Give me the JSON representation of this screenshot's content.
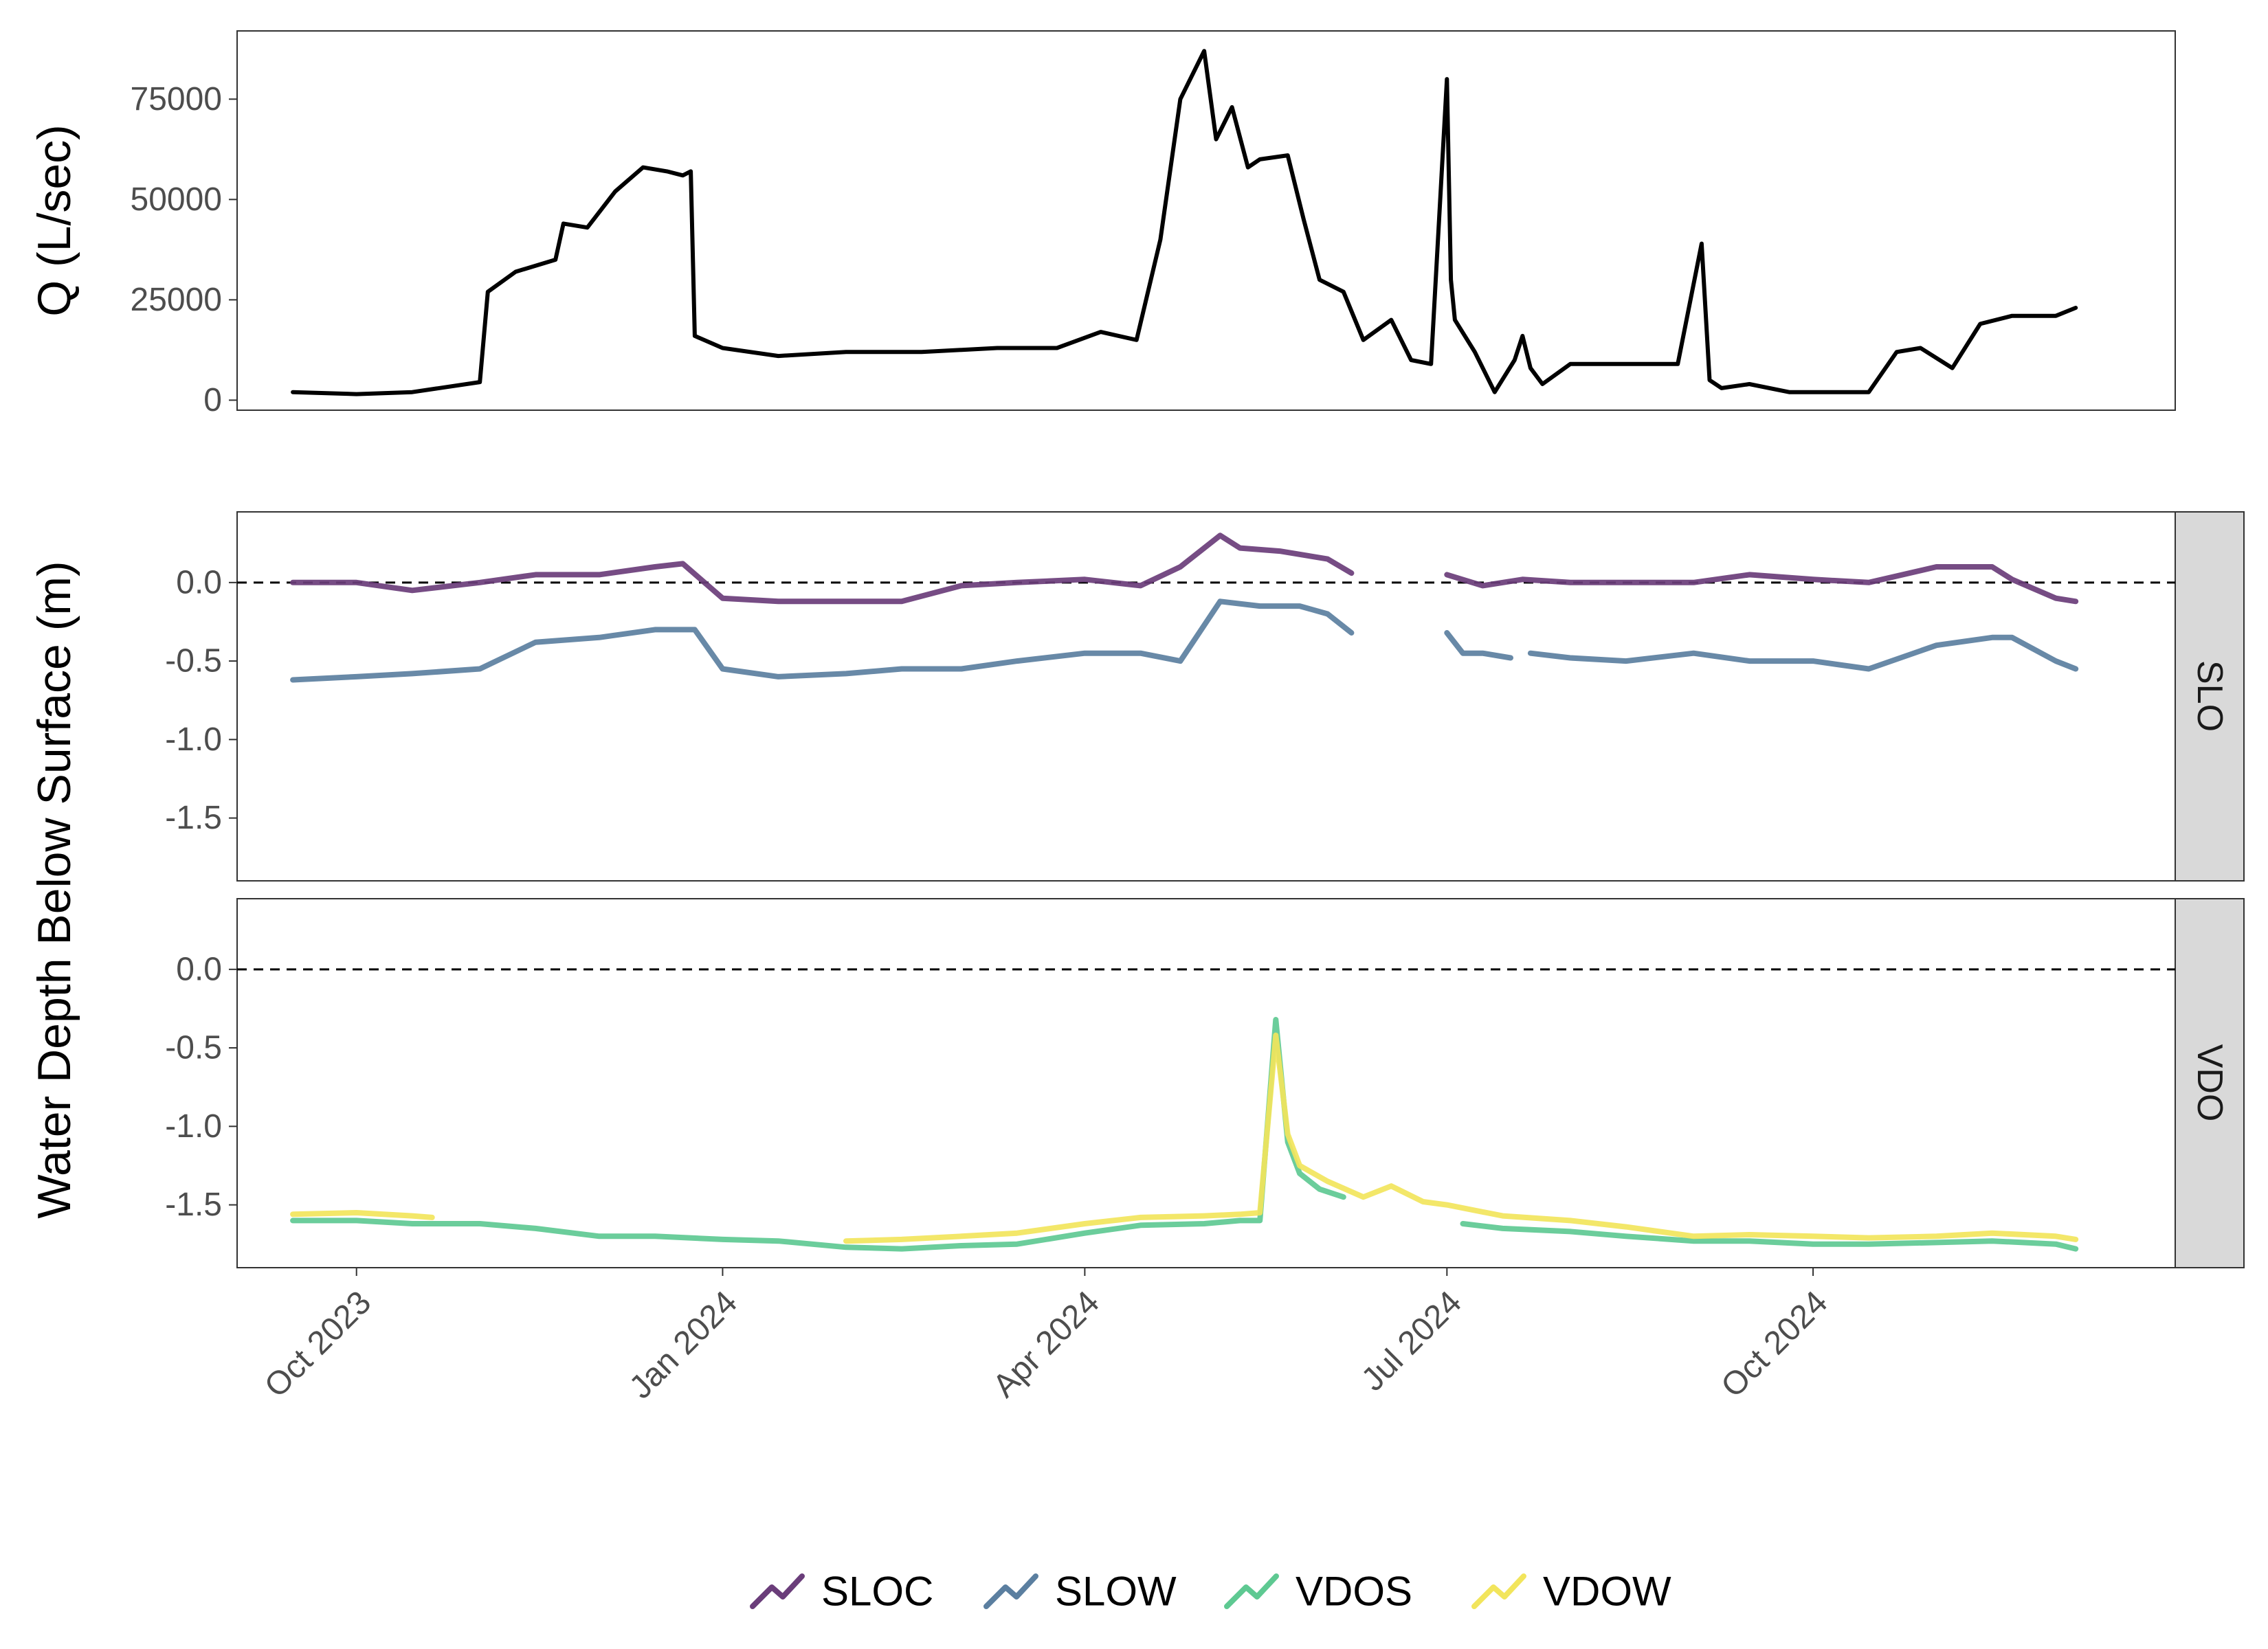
{
  "chart_data": [
    {
      "panel": "discharge",
      "type": "line",
      "ylabel": "Q (L/sec)",
      "ylim": [
        -2500,
        92000
      ],
      "yticks": [
        0,
        25000,
        50000,
        75000
      ],
      "ytick_labels": [
        "0",
        "25000",
        "50000",
        "75000"
      ],
      "xlim": [
        "2023-09-01",
        "2024-12-31"
      ],
      "series": [
        {
          "color": "#000000",
          "x": [
            "2023-09-15",
            "2023-10-01",
            "2023-10-15",
            "2023-11-01",
            "2023-11-03",
            "2023-11-10",
            "2023-11-20",
            "2023-11-22",
            "2023-11-28",
            "2023-12-05",
            "2023-12-12",
            "2023-12-18",
            "2023-12-22",
            "2023-12-24",
            "2023-12-25",
            "2024-01-01",
            "2024-01-15",
            "2024-02-01",
            "2024-02-20",
            "2024-03-10",
            "2024-03-25",
            "2024-04-05",
            "2024-04-14",
            "2024-04-20",
            "2024-04-25",
            "2024-05-01",
            "2024-05-04",
            "2024-05-08",
            "2024-05-12",
            "2024-05-15",
            "2024-05-22",
            "2024-05-26",
            "2024-05-30",
            "2024-06-05",
            "2024-06-10",
            "2024-06-17",
            "2024-06-22",
            "2024-06-27",
            "2024-07-01",
            "2024-07-02",
            "2024-07-03",
            "2024-07-08",
            "2024-07-13",
            "2024-07-18",
            "2024-07-20",
            "2024-07-22",
            "2024-07-25",
            "2024-08-01",
            "2024-08-15",
            "2024-08-28",
            "2024-09-03",
            "2024-09-05",
            "2024-09-08",
            "2024-09-15",
            "2024-09-25",
            "2024-10-15",
            "2024-10-22",
            "2024-10-28",
            "2024-11-05",
            "2024-11-12",
            "2024-11-20",
            "2024-11-25",
            "2024-12-01",
            "2024-12-06"
          ],
          "values": [
            2000,
            1500,
            2000,
            4500,
            27000,
            32000,
            35000,
            44000,
            43000,
            52000,
            58000,
            57000,
            56000,
            57000,
            16000,
            13000,
            11000,
            12000,
            12000,
            13000,
            13000,
            17000,
            15000,
            40000,
            75000,
            87000,
            65000,
            73000,
            58000,
            60000,
            61000,
            45000,
            30000,
            27000,
            15000,
            20000,
            10000,
            9000,
            80000,
            30000,
            20000,
            12000,
            2000,
            10000,
            16000,
            8000,
            4000,
            9000,
            9000,
            9000,
            39000,
            5000,
            3000,
            4000,
            2000,
            2000,
            12000,
            13000,
            8000,
            19000,
            21000,
            21000,
            21000,
            23000
          ]
        }
      ]
    },
    {
      "panel": "SLO",
      "type": "line",
      "facet_label": "SLO",
      "ylabel": "Water Depth Below Surface (m)",
      "ylim": [
        -1.9,
        0.45
      ],
      "yticks": [
        0.0,
        -0.5,
        -1.0,
        -1.5
      ],
      "ytick_labels": [
        "0.0",
        "-0.5",
        "-1.0",
        "-1.5"
      ],
      "reference_line": 0.0,
      "series": [
        {
          "name": "SLOC",
          "color": "#6a3d7a",
          "segments": [
            {
              "x": [
                "2023-09-15",
                "2023-10-01",
                "2023-10-15",
                "2023-11-01",
                "2023-11-15",
                "2023-12-01",
                "2023-12-15",
                "2023-12-22",
                "2024-01-01",
                "2024-01-15",
                "2024-02-01",
                "2024-02-15",
                "2024-03-01",
                "2024-03-15",
                "2024-04-01",
                "2024-04-15",
                "2024-04-25",
                "2024-05-05",
                "2024-05-10",
                "2024-05-20",
                "2024-06-01",
                "2024-06-07"
              ],
              "values": [
                0.0,
                0.0,
                -0.05,
                0.0,
                0.05,
                0.05,
                0.1,
                0.12,
                -0.1,
                -0.12,
                -0.12,
                -0.12,
                -0.02,
                0.0,
                0.02,
                -0.02,
                0.1,
                0.3,
                0.22,
                0.2,
                0.15,
                0.06
              ]
            },
            {
              "x": [
                "2024-07-01",
                "2024-07-10",
                "2024-07-20",
                "2024-08-01",
                "2024-08-15",
                "2024-09-01",
                "2024-09-15",
                "2024-10-01",
                "2024-10-15",
                "2024-11-01",
                "2024-11-15",
                "2024-11-20",
                "2024-12-01",
                "2024-12-06"
              ],
              "values": [
                0.05,
                -0.02,
                0.02,
                0.0,
                0.0,
                0.0,
                0.05,
                0.02,
                0.0,
                0.1,
                0.1,
                0.02,
                -0.1,
                -0.12
              ]
            }
          ]
        },
        {
          "name": "SLOW",
          "color": "#5b7fa0",
          "segments": [
            {
              "x": [
                "2023-09-15",
                "2023-10-01",
                "2023-10-15",
                "2023-11-01",
                "2023-11-15",
                "2023-12-01",
                "2023-12-15",
                "2023-12-25",
                "2024-01-01",
                "2024-01-15",
                "2024-02-01",
                "2024-02-15",
                "2024-03-01",
                "2024-03-15",
                "2024-04-01",
                "2024-04-15",
                "2024-04-25",
                "2024-05-05",
                "2024-05-15",
                "2024-05-25",
                "2024-06-01",
                "2024-06-07"
              ],
              "values": [
                -0.62,
                -0.6,
                -0.58,
                -0.55,
                -0.38,
                -0.35,
                -0.3,
                -0.3,
                -0.55,
                -0.6,
                -0.58,
                -0.55,
                -0.55,
                -0.5,
                -0.45,
                -0.45,
                -0.5,
                -0.12,
                -0.15,
                -0.15,
                -0.2,
                -0.32
              ]
            },
            {
              "x": [
                "2024-07-01",
                "2024-07-05",
                "2024-07-10",
                "2024-07-17"
              ],
              "values": [
                -0.32,
                -0.45,
                -0.45,
                -0.48
              ]
            },
            {
              "x": [
                "2024-07-22",
                "2024-08-01",
                "2024-08-15",
                "2024-09-01",
                "2024-09-15",
                "2024-10-01",
                "2024-10-15",
                "2024-11-01",
                "2024-11-15",
                "2024-11-20",
                "2024-12-01",
                "2024-12-06"
              ],
              "values": [
                -0.45,
                -0.48,
                -0.5,
                -0.45,
                -0.5,
                -0.5,
                -0.55,
                -0.4,
                -0.35,
                -0.35,
                -0.5,
                -0.55
              ]
            }
          ]
        }
      ]
    },
    {
      "panel": "VDO",
      "type": "line",
      "facet_label": "VDO",
      "ylim": [
        -1.9,
        0.45
      ],
      "yticks": [
        0.0,
        -0.5,
        -1.0,
        -1.5
      ],
      "ytick_labels": [
        "0.0",
        "-0.5",
        "-1.0",
        "-1.5"
      ],
      "reference_line": 0.0,
      "series": [
        {
          "name": "VDOS",
          "color": "#5ec992",
          "segments": [
            {
              "x": [
                "2023-09-15",
                "2023-10-01",
                "2023-10-15",
                "2023-11-01",
                "2023-11-15",
                "2023-12-01",
                "2023-12-15",
                "2024-01-01",
                "2024-01-15",
                "2024-02-01",
                "2024-02-15",
                "2024-03-01",
                "2024-03-15",
                "2024-04-01",
                "2024-04-15",
                "2024-05-01",
                "2024-05-10",
                "2024-05-15",
                "2024-05-19",
                "2024-05-22",
                "2024-05-25",
                "2024-05-30",
                "2024-06-05"
              ],
              "values": [
                -1.6,
                -1.6,
                -1.62,
                -1.62,
                -1.65,
                -1.7,
                -1.7,
                -1.72,
                -1.73,
                -1.77,
                -1.78,
                -1.76,
                -1.75,
                -1.68,
                -1.63,
                -1.62,
                -1.6,
                -1.6,
                -0.32,
                -1.1,
                -1.3,
                -1.4,
                -1.45
              ]
            },
            {
              "x": [
                "2024-07-05",
                "2024-07-15",
                "2024-08-01",
                "2024-08-15",
                "2024-09-01",
                "2024-09-15",
                "2024-10-01",
                "2024-10-15",
                "2024-11-01",
                "2024-11-15",
                "2024-12-01",
                "2024-12-06"
              ],
              "values": [
                -1.62,
                -1.65,
                -1.67,
                -1.7,
                -1.73,
                -1.73,
                -1.75,
                -1.75,
                -1.74,
                -1.73,
                -1.75,
                -1.78
              ]
            }
          ]
        },
        {
          "name": "VDOW",
          "color": "#f2e55c",
          "segments": [
            {
              "x": [
                "2023-09-15",
                "2023-10-01",
                "2023-10-15",
                "2023-10-20"
              ],
              "values": [
                -1.56,
                -1.55,
                -1.57,
                -1.58
              ]
            },
            {
              "x": [
                "2024-02-01",
                "2024-02-15",
                "2024-03-01",
                "2024-03-15",
                "2024-04-01",
                "2024-04-15",
                "2024-05-01",
                "2024-05-10",
                "2024-05-15",
                "2024-05-19",
                "2024-05-22",
                "2024-05-25",
                "2024-06-01",
                "2024-06-10",
                "2024-06-17",
                "2024-06-25",
                "2024-07-01",
                "2024-07-15",
                "2024-08-01",
                "2024-08-15",
                "2024-09-01",
                "2024-09-15",
                "2024-10-01",
                "2024-10-15",
                "2024-11-01",
                "2024-11-15",
                "2024-12-01",
                "2024-12-06"
              ],
              "values": [
                -1.73,
                -1.72,
                -1.7,
                -1.68,
                -1.62,
                -1.58,
                -1.57,
                -1.56,
                -1.55,
                -0.42,
                -1.05,
                -1.25,
                -1.35,
                -1.45,
                -1.38,
                -1.48,
                -1.5,
                -1.57,
                -1.6,
                -1.64,
                -1.7,
                -1.69,
                -1.7,
                -1.71,
                -1.7,
                -1.68,
                -1.7,
                -1.72
              ]
            }
          ]
        }
      ]
    }
  ],
  "x_axis": {
    "ticks": [
      "2023-10-01",
      "2024-01-01",
      "2024-04-01",
      "2024-07-01",
      "2024-10-01"
    ],
    "tick_labels": [
      "Oct 2023",
      "Jan 2024",
      "Apr 2024",
      "Jul 2024",
      "Oct 2024"
    ]
  },
  "legend": {
    "position": "bottom",
    "items": [
      {
        "label": "SLOC",
        "color": "#6a3d7a"
      },
      {
        "label": "SLOW",
        "color": "#5b7fa0"
      },
      {
        "label": "VDOS",
        "color": "#5ec992"
      },
      {
        "label": "VDOW",
        "color": "#f2e55c"
      }
    ]
  },
  "shared_ylabel": "Water Depth Below Surface (m)"
}
